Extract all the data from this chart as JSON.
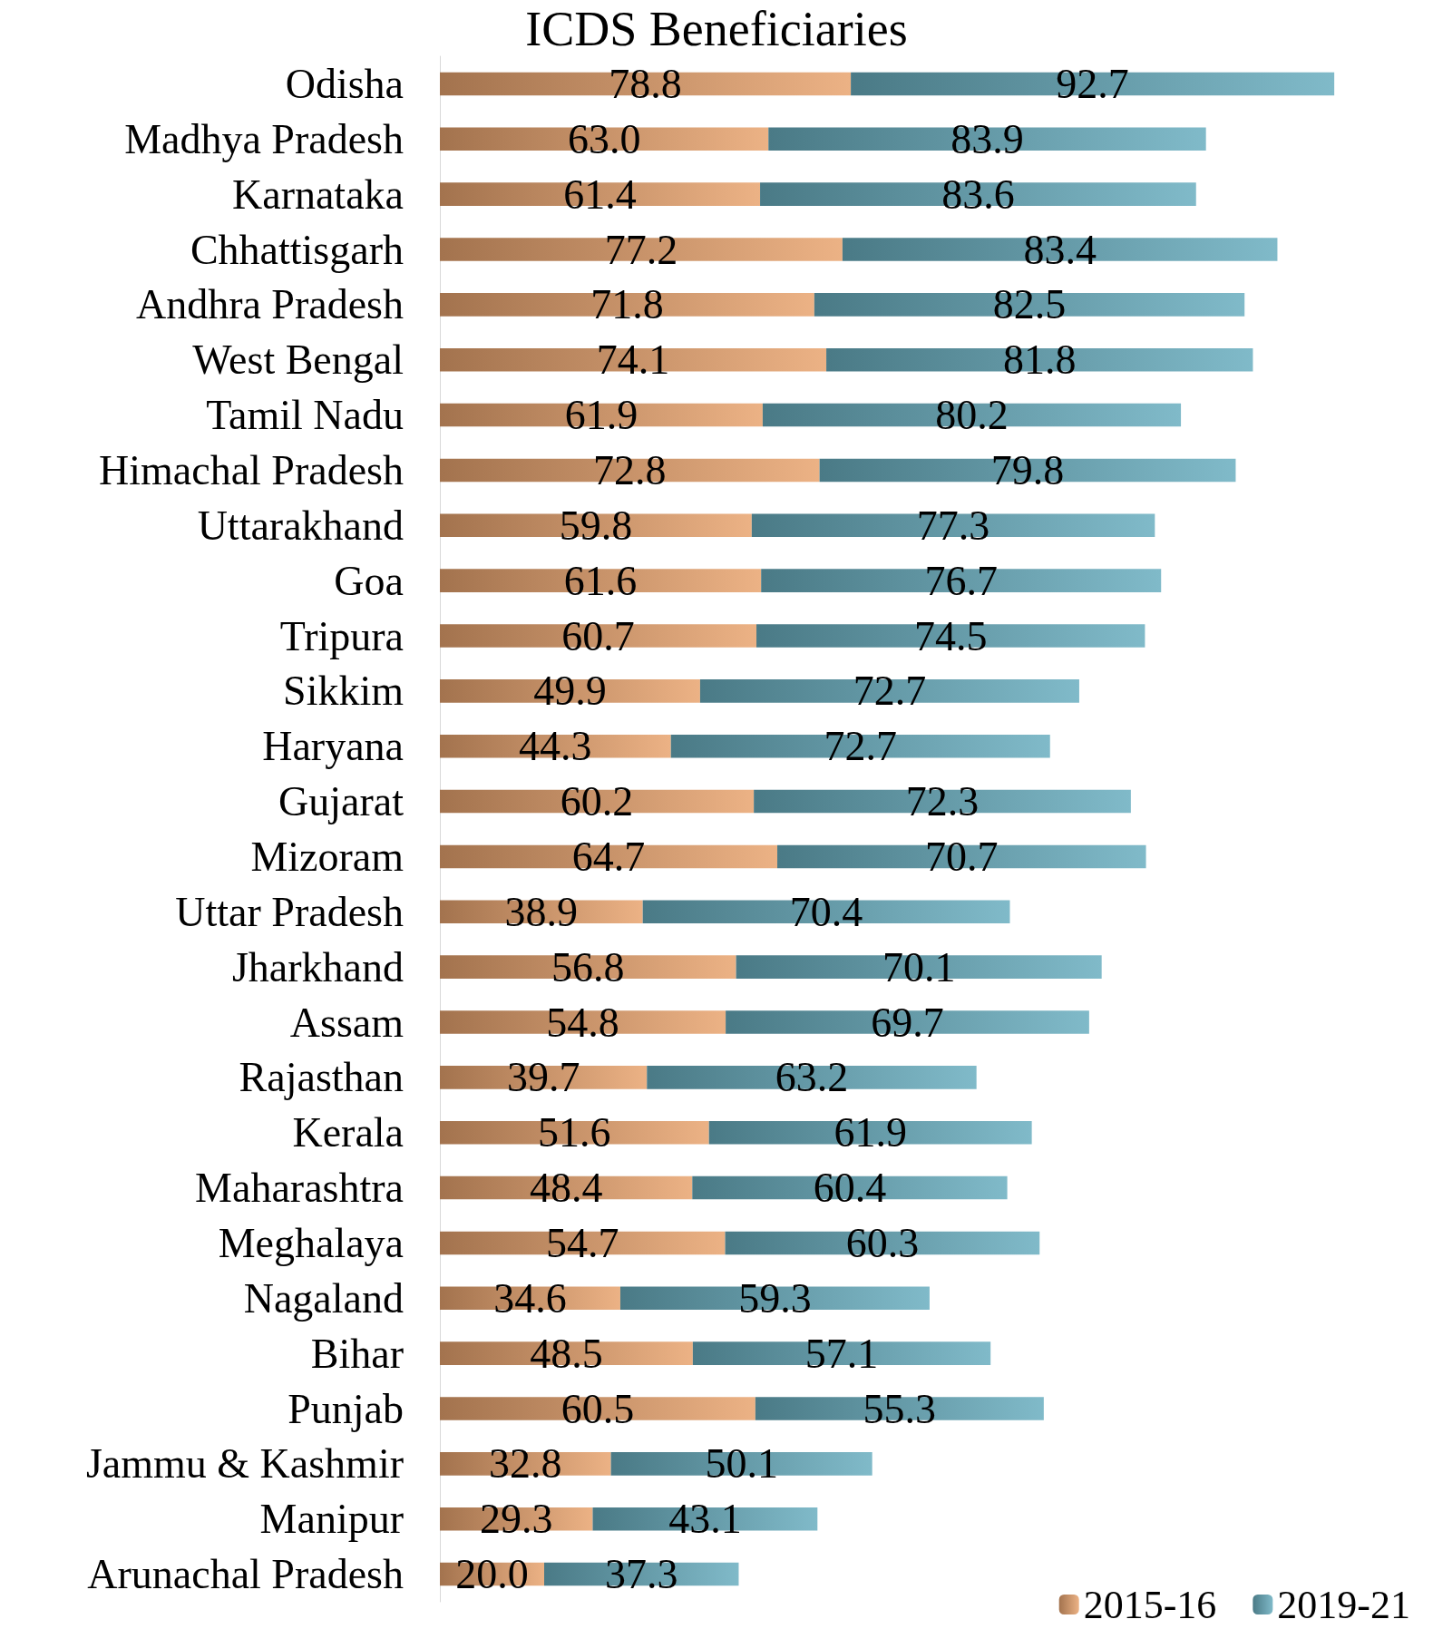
{
  "chart_data": {
    "type": "bar",
    "title": "ICDS Beneficiaries",
    "orientation": "horizontal",
    "stacked": true,
    "tick_labels": "y",
    "grid": false,
    "legend": "bottom right",
    "categories": [
      "Odisha",
      "Madhya Pradesh",
      "Karnataka",
      "Chhattisgarh",
      "Andhra Pradesh",
      "West Bengal",
      "Tamil Nadu",
      "Himachal Pradesh",
      "Uttarakhand",
      "Goa",
      "Tripura",
      "Sikkim",
      "Haryana",
      "Gujarat",
      "Mizoram",
      "Uttar Pradesh",
      "Jharkhand",
      "Assam",
      "Rajasthan",
      "Kerala",
      "Maharashtra",
      "Meghalaya",
      "Nagaland",
      "Bihar",
      "Punjab",
      "Jammu & Kashmir",
      "Manipur",
      "Arunachal Pradesh"
    ],
    "series": [
      {
        "name": "2015-16",
        "color": "#e9a46f",
        "values": [
          78.8,
          63.0,
          61.4,
          77.2,
          71.8,
          74.1,
          61.9,
          72.8,
          59.8,
          61.6,
          60.7,
          49.9,
          44.3,
          60.2,
          64.7,
          38.9,
          56.8,
          54.8,
          39.7,
          51.6,
          48.4,
          54.7,
          34.6,
          48.5,
          60.5,
          32.8,
          29.3,
          20.0
        ],
        "value_labels": [
          "78.8",
          "63.0",
          "61.4",
          "77.2",
          "71.8",
          "74.1",
          "61.9",
          "72.8",
          "59.8",
          "61.6",
          "60.7",
          "49.9",
          "44.3",
          "60.2",
          "64.7",
          "38.9",
          "56.8",
          "54.8",
          "39.7",
          "51.6",
          "48.4",
          "54.7",
          "34.6",
          "48.5",
          "60.5",
          "32.8",
          "29.3",
          "20.0"
        ]
      },
      {
        "name": "2019-21",
        "color": "#6aaebf",
        "values": [
          92.7,
          83.9,
          83.6,
          83.4,
          82.5,
          81.8,
          80.2,
          79.8,
          77.3,
          76.7,
          74.5,
          72.7,
          72.7,
          72.3,
          70.7,
          70.4,
          70.1,
          69.7,
          63.2,
          61.9,
          60.4,
          60.3,
          59.3,
          57.1,
          55.3,
          50.1,
          43.1,
          37.3
        ],
        "value_labels": [
          "92.7",
          "83.9",
          "83.6",
          "83.4",
          "82.5",
          "81.8",
          "80.2",
          "79.8",
          "77.3",
          "76.7",
          "74.5",
          "72.7",
          "72.7",
          "72.3",
          "70.7",
          "70.4",
          "70.1",
          "69.7",
          "63.2",
          "61.9",
          "60.4",
          "60.3",
          "59.3",
          "57.1",
          "55.3",
          "50.1",
          "43.1",
          "37.3"
        ]
      }
    ]
  }
}
